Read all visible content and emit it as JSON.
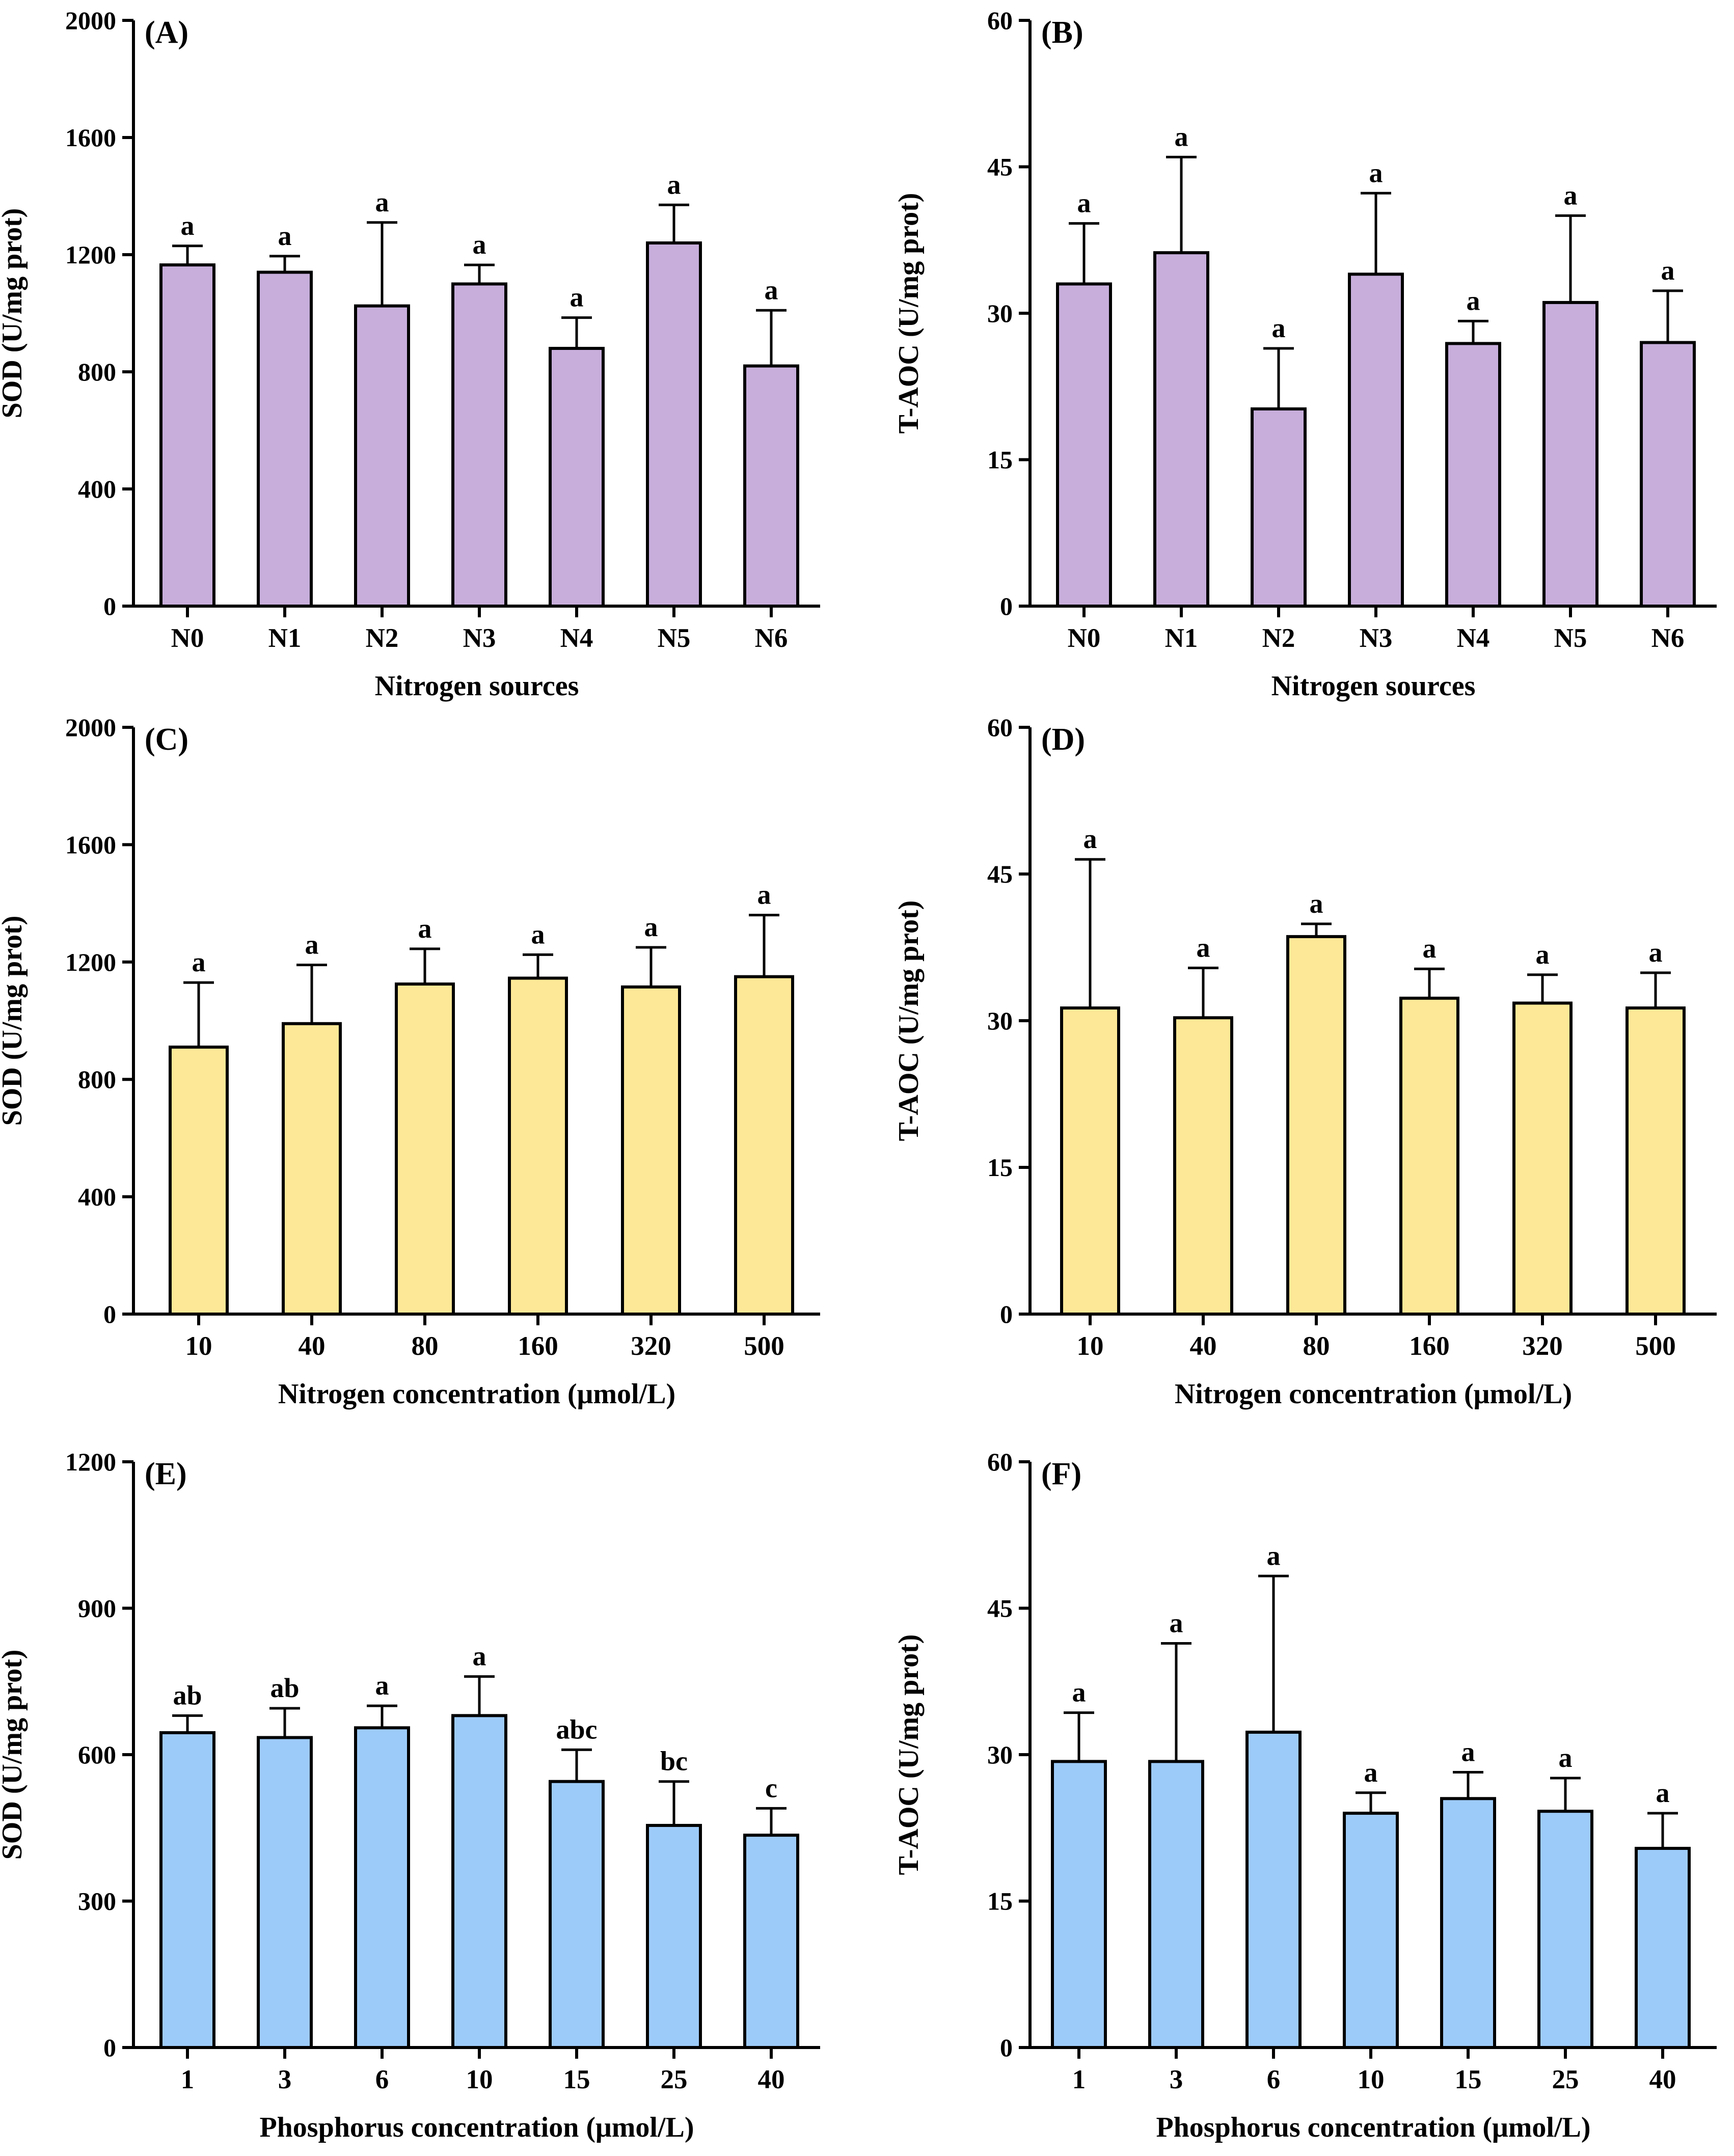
{
  "chart_data": [
    {
      "id": "A",
      "type": "bar",
      "panel_label": "(A)",
      "title": "",
      "xlabel": "Nitrogen sources",
      "ylabel": "SOD (U/mg prot)",
      "ylim": [
        0,
        2000
      ],
      "yticks": [
        0,
        400,
        800,
        1200,
        1600,
        2000
      ],
      "categories": [
        "N0",
        "N1",
        "N2",
        "N3",
        "N4",
        "N5",
        "N6"
      ],
      "values": [
        1165,
        1140,
        1025,
        1100,
        880,
        1240,
        820
      ],
      "errors": [
        65,
        55,
        285,
        65,
        105,
        130,
        190
      ],
      "letters": [
        "a",
        "a",
        "a",
        "a",
        "a",
        "a",
        "a"
      ],
      "color": "#c7aedb",
      "grid": false
    },
    {
      "id": "B",
      "type": "bar",
      "panel_label": "(B)",
      "title": "",
      "xlabel": "Nitrogen sources",
      "ylabel": "T-AOC (U/mg prot)",
      "ylim": [
        0,
        60
      ],
      "yticks": [
        0,
        15,
        30,
        45,
        60
      ],
      "categories": [
        "N0",
        "N1",
        "N2",
        "N3",
        "N4",
        "N5",
        "N6"
      ],
      "values": [
        33.0,
        36.2,
        20.2,
        34.0,
        26.9,
        31.1,
        27.0
      ],
      "errors": [
        6.2,
        9.8,
        6.2,
        8.3,
        2.3,
        8.9,
        5.3
      ],
      "letters": [
        "a",
        "a",
        "a",
        "a",
        "a",
        "a",
        "a"
      ],
      "color": "#c7aedb",
      "grid": false
    },
    {
      "id": "C",
      "type": "bar",
      "panel_label": "(C)",
      "title": "",
      "xlabel": "Nitrogen concentration (μmol/L)",
      "ylabel": "SOD (U/mg prot)",
      "ylim": [
        0,
        2000
      ],
      "yticks": [
        0,
        400,
        800,
        1200,
        1600,
        2000
      ],
      "categories": [
        "10",
        "40",
        "80",
        "160",
        "320",
        "500"
      ],
      "values": [
        910,
        990,
        1125,
        1145,
        1115,
        1150
      ],
      "errors": [
        220,
        200,
        120,
        80,
        135,
        210
      ],
      "letters": [
        "a",
        "a",
        "a",
        "a",
        "a",
        "a"
      ],
      "color": "#fde897",
      "grid": false
    },
    {
      "id": "D",
      "type": "bar",
      "panel_label": "(D)",
      "title": "",
      "xlabel": "Nitrogen concentration (μmol/L)",
      "ylabel": "T-AOC (U/mg prot)",
      "ylim": [
        0,
        60
      ],
      "yticks": [
        0,
        15,
        30,
        45,
        60
      ],
      "categories": [
        "10",
        "40",
        "80",
        "160",
        "320",
        "500"
      ],
      "values": [
        31.3,
        30.3,
        38.6,
        32.3,
        31.8,
        31.3
      ],
      "errors": [
        15.2,
        5.1,
        1.3,
        3.0,
        2.9,
        3.6
      ],
      "letters": [
        "a",
        "a",
        "a",
        "a",
        "a",
        "a"
      ],
      "color": "#fde897",
      "grid": false
    },
    {
      "id": "E",
      "type": "bar",
      "panel_label": "(E)",
      "title": "",
      "xlabel": "Phosphorus concentration (μmol/L)",
      "ylabel": "SOD (U/mg prot)",
      "ylim": [
        0,
        1200
      ],
      "yticks": [
        0,
        300,
        600,
        900,
        1200
      ],
      "categories": [
        "1",
        "3",
        "6",
        "10",
        "15",
        "25",
        "40"
      ],
      "values": [
        645,
        635,
        655,
        680,
        545,
        455,
        435
      ],
      "errors": [
        35,
        60,
        45,
        80,
        65,
        90,
        55
      ],
      "letters": [
        "ab",
        "ab",
        "a",
        "a",
        "abc",
        "bc",
        "c"
      ],
      "color": "#9dcbf9",
      "grid": false
    },
    {
      "id": "F",
      "type": "bar",
      "panel_label": "(F)",
      "title": "",
      "xlabel": "Phosphorus concentration (μmol/L)",
      "ylabel": "T-AOC (U/mg prot)",
      "ylim": [
        0,
        60
      ],
      "yticks": [
        0,
        15,
        30,
        45,
        60
      ],
      "categories": [
        "1",
        "3",
        "6",
        "10",
        "15",
        "25",
        "40"
      ],
      "values": [
        29.3,
        29.3,
        32.3,
        24.0,
        25.5,
        24.2,
        20.4
      ],
      "errors": [
        5.0,
        12.1,
        16.0,
        2.1,
        2.7,
        3.4,
        3.6
      ],
      "letters": [
        "a",
        "a",
        "a",
        "a",
        "a",
        "a",
        "a"
      ],
      "color": "#9dcbf9",
      "grid": false
    }
  ]
}
